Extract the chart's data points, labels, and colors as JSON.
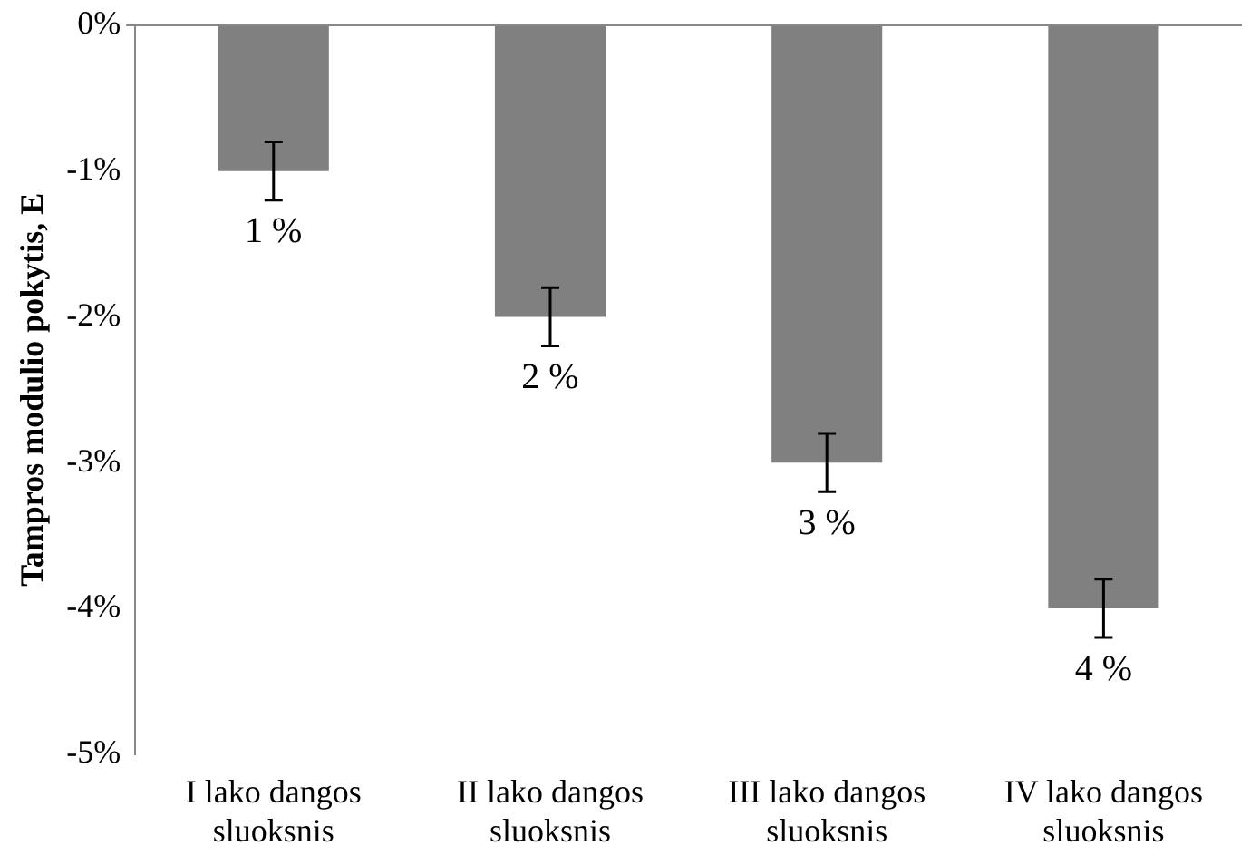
{
  "chart_data": {
    "type": "bar",
    "ylabel": "Tampros modulio pokytis, E",
    "categories": [
      "I lako dangos sluoksnis",
      "II lako dangos sluoksnis",
      "III lako dangos sluoksnis",
      "IV lako dangos sluoksnis"
    ],
    "values": [
      -1,
      -2,
      -3,
      -4
    ],
    "color": "#808080",
    "errors": [
      0.2,
      0.2,
      0.2,
      0.2
    ],
    "annotations": [
      {
        "text": "1 %",
        "x": "I lako dangos sluoksnis",
        "y": -1.2
      },
      {
        "text": "2 %",
        "x": "II lako dangos sluoksnis",
        "y": -2.2
      },
      {
        "text": "3 %",
        "x": "III lako dangos sluoksnis",
        "y": -3.2
      },
      {
        "text": "4 %",
        "x": "IV lako dangos sluoksnis",
        "y": -4.2
      }
    ],
    "ylim": [
      -5,
      0
    ],
    "yticks": [
      {
        "value": 0,
        "label": "0%"
      },
      {
        "value": -1,
        "label": "-1%"
      },
      {
        "value": -2,
        "label": "-2%"
      },
      {
        "value": -3,
        "label": "-3%"
      },
      {
        "value": -4,
        "label": "-4%"
      },
      {
        "value": -5,
        "label": "-5%"
      }
    ],
    "grid": false,
    "legend": false
  }
}
